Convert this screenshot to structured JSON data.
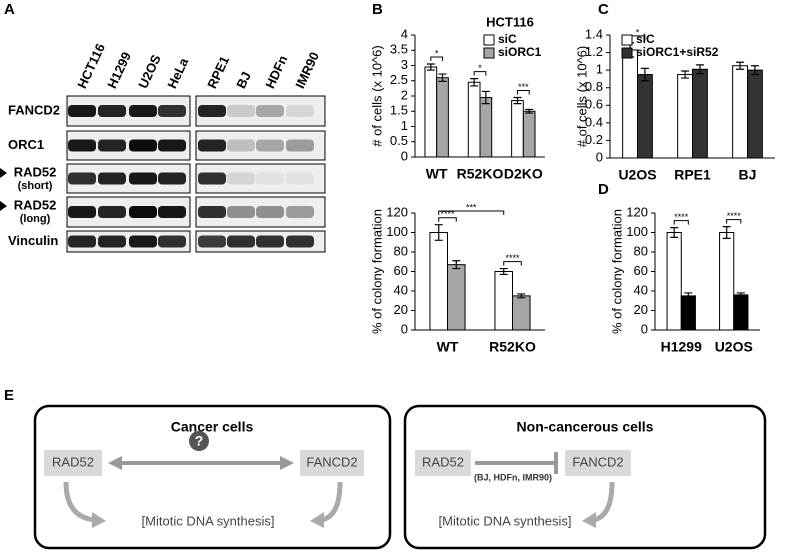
{
  "panel_labels": [
    "A",
    "B",
    "C",
    "D",
    "E"
  ],
  "blot": {
    "columns_left": [
      "HCT116",
      "H1299",
      "U2OS",
      "HeLa"
    ],
    "columns_right": [
      "RPE1",
      "BJ",
      "HDFn",
      "IMR90"
    ],
    "rows": [
      {
        "label": "FANCD2"
      },
      {
        "label": "ORC1"
      },
      {
        "label": "RAD52",
        "note": "(short)"
      },
      {
        "label": "RAD52",
        "note": "(long)"
      },
      {
        "label": "Vinculin"
      }
    ]
  },
  "chart_data": [
    {
      "type": "bar",
      "title": "HCT116",
      "y_label": "# of cells (x 10^6)",
      "categories": [
        "WT",
        "R52KO",
        "D2KO"
      ],
      "series": [
        {
          "name": "siC",
          "color": "#ffffff",
          "values": [
            2.95,
            2.45,
            1.85
          ],
          "errors": [
            0.1,
            0.12,
            0.1
          ]
        },
        {
          "name": "siORC1",
          "color": "#a6a6a6",
          "values": [
            2.6,
            1.95,
            1.5
          ],
          "errors": [
            0.12,
            0.2,
            0.06
          ]
        }
      ],
      "annotations": [
        "*",
        "*",
        "***"
      ],
      "ylim": [
        0,
        4
      ],
      "yticks": [
        0,
        0.5,
        1,
        1.5,
        2,
        2.5,
        3,
        3.5,
        4
      ],
      "legend": "top-right"
    },
    {
      "type": "bar",
      "y_label": "% of colony formation",
      "categories": [
        "WT",
        "R52KO"
      ],
      "series": [
        {
          "color": "#ffffff",
          "values": [
            100,
            60
          ],
          "errors": [
            8,
            3
          ]
        },
        {
          "color": "#a6a6a6",
          "values": [
            67,
            35
          ],
          "errors": [
            4,
            2
          ]
        }
      ],
      "annotations": [
        "****",
        "****",
        "***"
      ],
      "ylim": [
        0,
        120
      ],
      "yticks": [
        0,
        20,
        40,
        60,
        80,
        100,
        120
      ]
    },
    {
      "type": "bar",
      "y_label": "# of cells (x 10^6)",
      "categories": [
        "U2OS",
        "RPE1",
        "BJ"
      ],
      "series": [
        {
          "name": "siC",
          "color": "#ffffff",
          "values": [
            1.23,
            0.95,
            1.05
          ],
          "errors": [
            0.08,
            0.04,
            0.04
          ]
        },
        {
          "name": "siORC1+siR52",
          "color": "#333333",
          "values": [
            0.95,
            1.01,
            1.0
          ],
          "errors": [
            0.07,
            0.05,
            0.05
          ]
        }
      ],
      "annotations": [
        "*"
      ],
      "ylim": [
        0,
        1.4
      ],
      "yticks": [
        0,
        0.2,
        0.4,
        0.6,
        0.8,
        1,
        1.2,
        1.4
      ],
      "legend": "top-left"
    },
    {
      "type": "bar",
      "y_label": "% of colony formation",
      "categories": [
        "H1299",
        "U2OS"
      ],
      "series": [
        {
          "color": "#ffffff",
          "values": [
            100,
            100
          ],
          "errors": [
            5,
            6
          ]
        },
        {
          "color": "#000000",
          "values": [
            35,
            36
          ],
          "errors": [
            3,
            2
          ]
        }
      ],
      "annotations": [
        "****",
        "****"
      ],
      "ylim": [
        0,
        120
      ],
      "yticks": [
        0,
        20,
        40,
        60,
        80,
        100,
        120
      ]
    }
  ],
  "diagram": {
    "panels": [
      {
        "title": "Cancer cells",
        "left": "RAD52",
        "right": "FANCD2",
        "middle": "?",
        "bottom": "[Mitotic DNA synthesis]"
      },
      {
        "title": "Non-cancerous cells",
        "left": "RAD52",
        "right": "FANCD2",
        "middle": "(BJ, HDFn, IMR90)",
        "bottom": "[Mitotic DNA synthesis]"
      }
    ]
  }
}
